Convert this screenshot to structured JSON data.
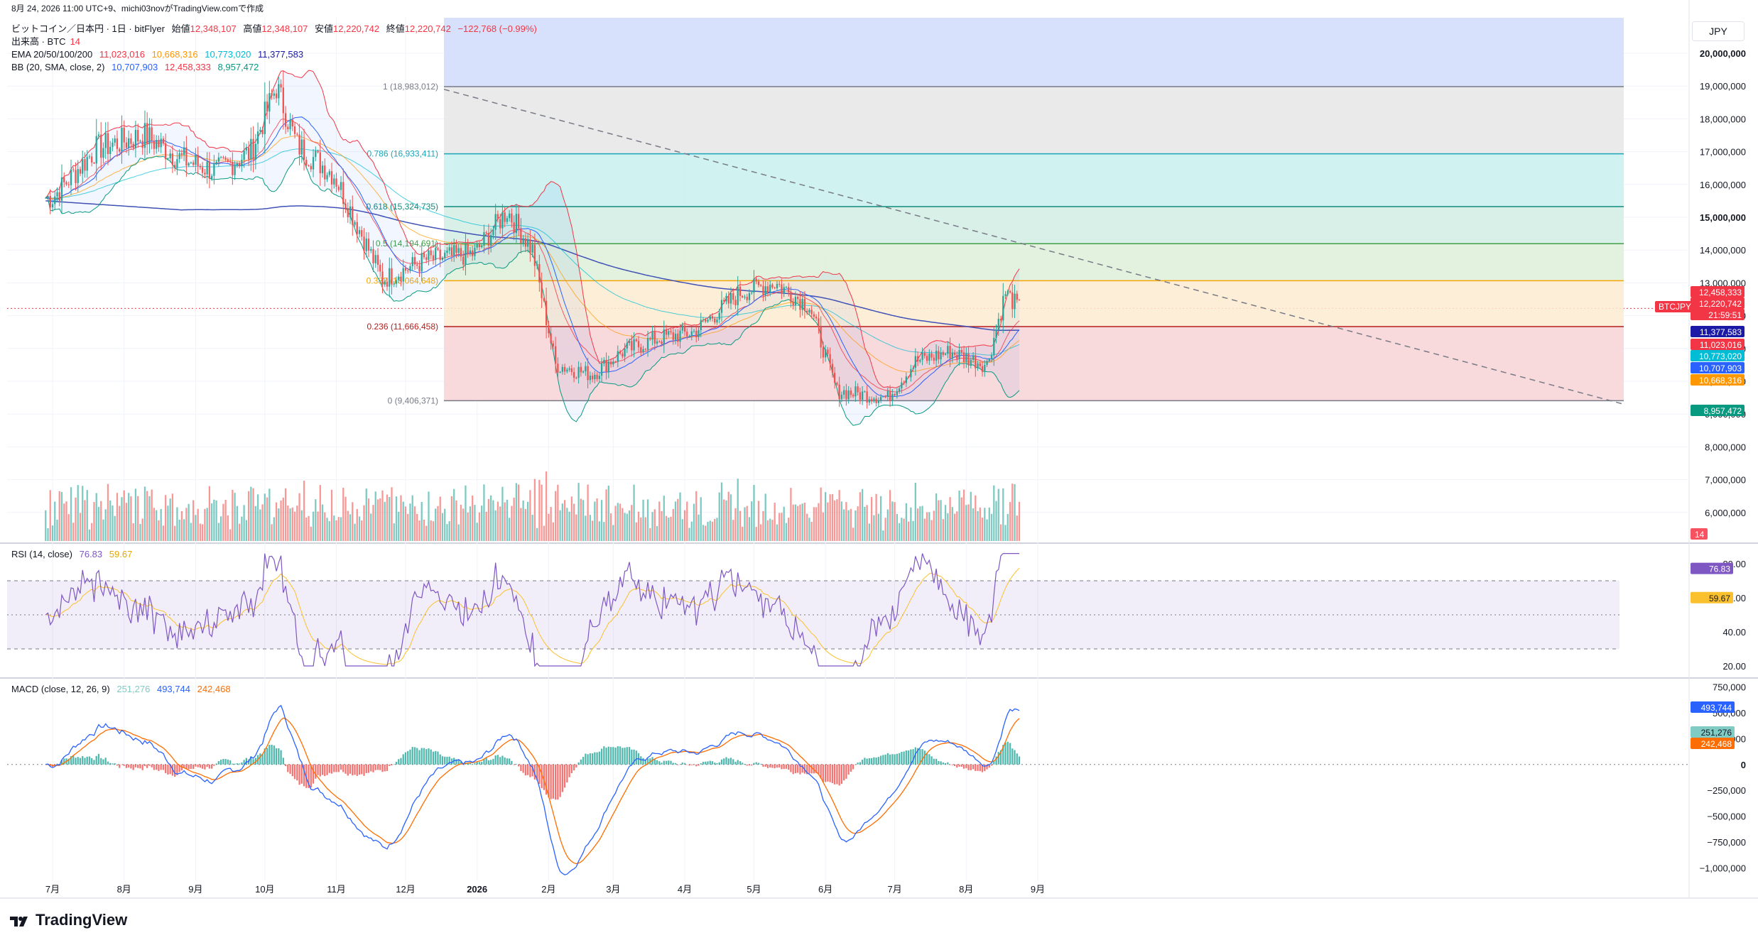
{
  "timestamp": "8月 24, 2026 11:00 UTC+9、michi03novがTradingView.comで作成",
  "header": {
    "symbol_line": "ビットコイン／日本円 · 1日 · bitFlyer",
    "open_label": "始値",
    "open": "12,348,107",
    "high_label": "高値",
    "high": "12,348,107",
    "low_label": "安値",
    "low": "12,220,742",
    "close_label": "終値",
    "close": "12,220,742",
    "change": "−122,768 (−0.99%)",
    "volume_label": "出来高 · BTC",
    "volume_value": "14",
    "ema_label": "EMA 20/50/100/200",
    "ema_values": [
      "11,023,016",
      "10,668,316",
      "10,773,020",
      "11,377,583"
    ],
    "bb_label": "BB (20, SMA, close, 2)",
    "bb_values": [
      "10,707,903",
      "12,458,333",
      "8,957,472"
    ]
  },
  "currency": "JPY",
  "symbol_tag": "BTCJPY",
  "brand": "TradingView",
  "colors": {
    "up": "#26a69a",
    "down": "#ef5350",
    "ema20": "#f23645",
    "ema50": "#ff9800",
    "ema100": "#00bcd4",
    "ema200": "#3f51b5",
    "bb_basis": "#2962ff",
    "bb_band": "#089981",
    "rsi": "#7e57c2",
    "rsi_ma": "#fbc02d",
    "macd": "#2962ff",
    "signal": "#ff6d00"
  },
  "chart_data": [
    {
      "type": "line",
      "panel": "price",
      "title": "BTCJPY 1D bitFlyer",
      "x_axis_labels": [
        "7月",
        "8月",
        "9月",
        "10月",
        "11月",
        "12月",
        "2026",
        "2月",
        "3月",
        "4月",
        "5月",
        "6月",
        "7月",
        "8月",
        "9月"
      ],
      "y_ticks": [
        "20,000,000",
        "19,000,000",
        "18,000,000",
        "17,000,000",
        "16,000,000",
        "15,000,000",
        "14,000,000",
        "13,000,000",
        "12,000,000",
        "11,000,000",
        "10,000,000",
        "9,000,000",
        "8,000,000",
        "7,000,000",
        "6,000,000"
      ],
      "ylim": [
        5500000,
        20000000
      ],
      "x": [
        "2025-07-01",
        "2025-07-20",
        "2025-08-10",
        "2025-08-25",
        "2025-09-10",
        "2025-09-25",
        "2025-10-06",
        "2025-10-15",
        "2025-10-31",
        "2025-11-21",
        "2025-12-10",
        "2025-12-31",
        "2026-01-14",
        "2026-01-25",
        "2026-02-04",
        "2026-02-20",
        "2026-03-05",
        "2026-03-20",
        "2026-04-05",
        "2026-04-25",
        "2026-05-10",
        "2026-05-25",
        "2026-06-06",
        "2026-06-28",
        "2026-07-10",
        "2026-07-25",
        "2026-08-10",
        "2026-08-18",
        "2026-08-24"
      ],
      "series": [
        {
          "values": [
            15600000,
            17100000,
            17500000,
            16800000,
            16400000,
            17000000,
            18983012,
            17200000,
            16300000,
            13100000,
            13700000,
            13900000,
            15200000,
            14000000,
            10500000,
            10200000,
            10900000,
            11300000,
            11500000,
            12700000,
            13000000,
            12300000,
            9700000,
            9500000,
            10600000,
            10900000,
            10500000,
            12700000,
            12220742
          ]
        }
      ],
      "bb": {
        "basis": 10707903,
        "upper": 12458333,
        "lower": 8957472
      },
      "ema": {
        "ema20": 11023016,
        "ema50": 10668316,
        "ema100": 10773020,
        "ema200": 11377583
      },
      "fib_levels": [
        {
          "label": "1 (18,983,012)",
          "value": 18983012
        },
        {
          "label": "0.786 (16,933,411)",
          "value": 16933411
        },
        {
          "label": "0.618 (15,324,735)",
          "value": 15324735
        },
        {
          "label": "0.5 (14,194,691)",
          "value": 14194691
        },
        {
          "label": "0.382 (13,064,648)",
          "value": 13064648
        },
        {
          "label": "0.236 (11,666,458)",
          "value": 11666458
        },
        {
          "label": "0 (9,406,371)",
          "value": 9406371
        }
      ],
      "right_tags": [
        {
          "text": "12,458,333",
          "color": "#f23645"
        },
        {
          "text": "12,220,742",
          "color": "#f23645"
        },
        {
          "text": "21:59:51",
          "color": "#f23645"
        },
        {
          "text": "11,377,583",
          "color": "#1a1aa6"
        },
        {
          "text": "11,023,016",
          "color": "#f23645"
        },
        {
          "text": "10,773,020",
          "color": "#00bcd4"
        },
        {
          "text": "10,707,903",
          "color": "#2962ff"
        },
        {
          "text": "10,668,316",
          "color": "#ff9800"
        },
        {
          "text": "8,957,472",
          "color": "#089981"
        }
      ],
      "volume_tag": "14"
    },
    {
      "type": "line",
      "panel": "rsi",
      "title": "RSI (14, close)",
      "values_shown": [
        "76.83",
        "59.67"
      ],
      "y_ticks": [
        "80.00",
        "60.00",
        "40.00",
        "20.00"
      ],
      "ylim": [
        15,
        90
      ],
      "bands": [
        70,
        50,
        30
      ]
    },
    {
      "type": "line",
      "panel": "macd",
      "title": "MACD (close, 12, 26, 9)",
      "values_shown": [
        "251,276",
        "493,744",
        "242,468"
      ],
      "y_ticks": [
        "750,000",
        "500,000",
        "250,000",
        "0",
        "−250,000",
        "−500,000",
        "−750,000",
        "−1,000,000"
      ],
      "ylim": [
        -1050000,
        800000
      ],
      "tags": [
        {
          "text": "493,744",
          "color": "#2962ff"
        },
        {
          "text": "251,276",
          "color": "#80cbc4"
        },
        {
          "text": "242,468",
          "color": "#ff6d00"
        }
      ]
    }
  ]
}
